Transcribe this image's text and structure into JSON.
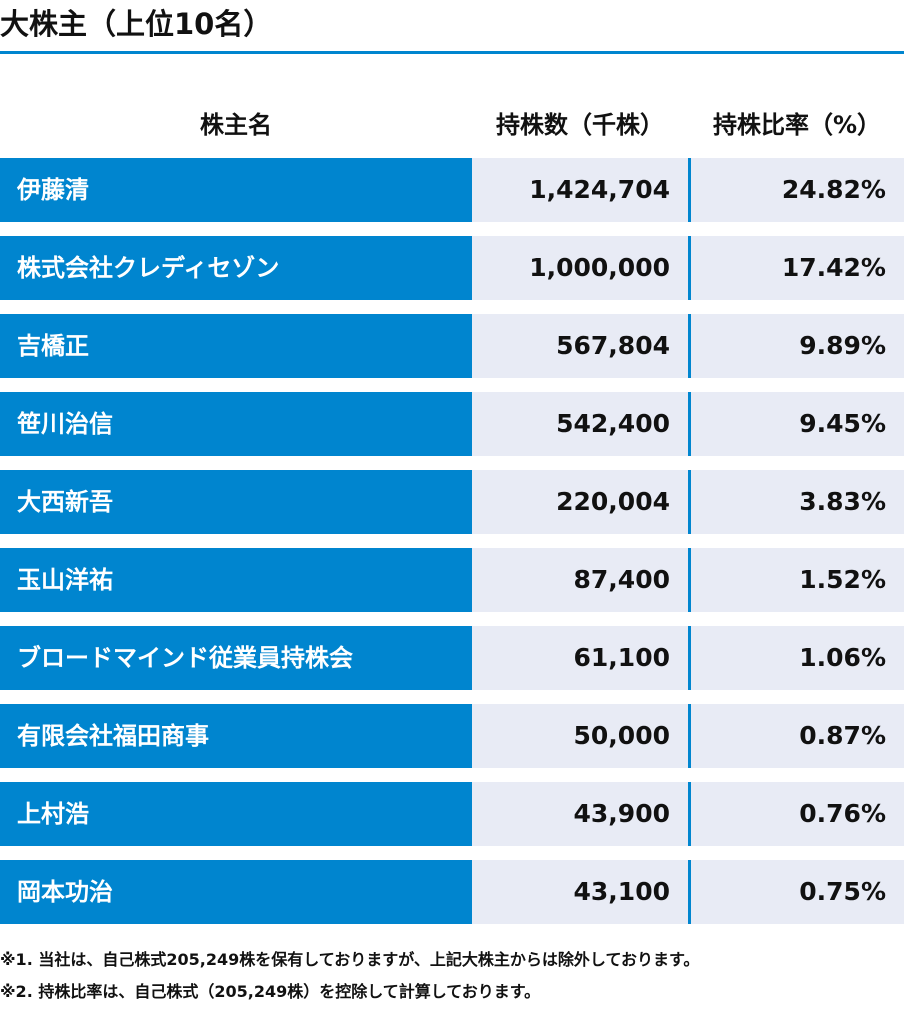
{
  "title": "大株主（上位10名）",
  "colors": {
    "accent": "#0085cf",
    "value_cell_bg": "#e8ebf5",
    "name_text": "#ffffff"
  },
  "table": {
    "headers": {
      "name": "株主名",
      "shares": "持株数（千株）",
      "ratio": "持株比率（%）"
    },
    "rows": [
      {
        "name": "伊藤清",
        "shares": "1,424,704",
        "ratio": "24.82%"
      },
      {
        "name": "株式会社クレディセゾン",
        "shares": "1,000,000",
        "ratio": "17.42%"
      },
      {
        "name": "吉橋正",
        "shares": "567,804",
        "ratio": "9.89%"
      },
      {
        "name": "笹川治信",
        "shares": "542,400",
        "ratio": "9.45%"
      },
      {
        "name": "大西新吾",
        "shares": "220,004",
        "ratio": "3.83%"
      },
      {
        "name": "玉山洋祐",
        "shares": "87,400",
        "ratio": "1.52%"
      },
      {
        "name": "ブロードマインド従業員持株会",
        "shares": "61,100",
        "ratio": "1.06%"
      },
      {
        "name": "有限会社福田商事",
        "shares": "50,000",
        "ratio": "0.87%"
      },
      {
        "name": "上村浩",
        "shares": "43,900",
        "ratio": "0.76%"
      },
      {
        "name": "岡本功治",
        "shares": "43,100",
        "ratio": "0.75%"
      }
    ]
  },
  "notes": [
    "※1. 当社は、自己株式205,249株を保有しておりますが、上記大株主からは除外しております。",
    "※2. 持株比率は、自己株式（205,249株）を控除して計算しております。"
  ]
}
